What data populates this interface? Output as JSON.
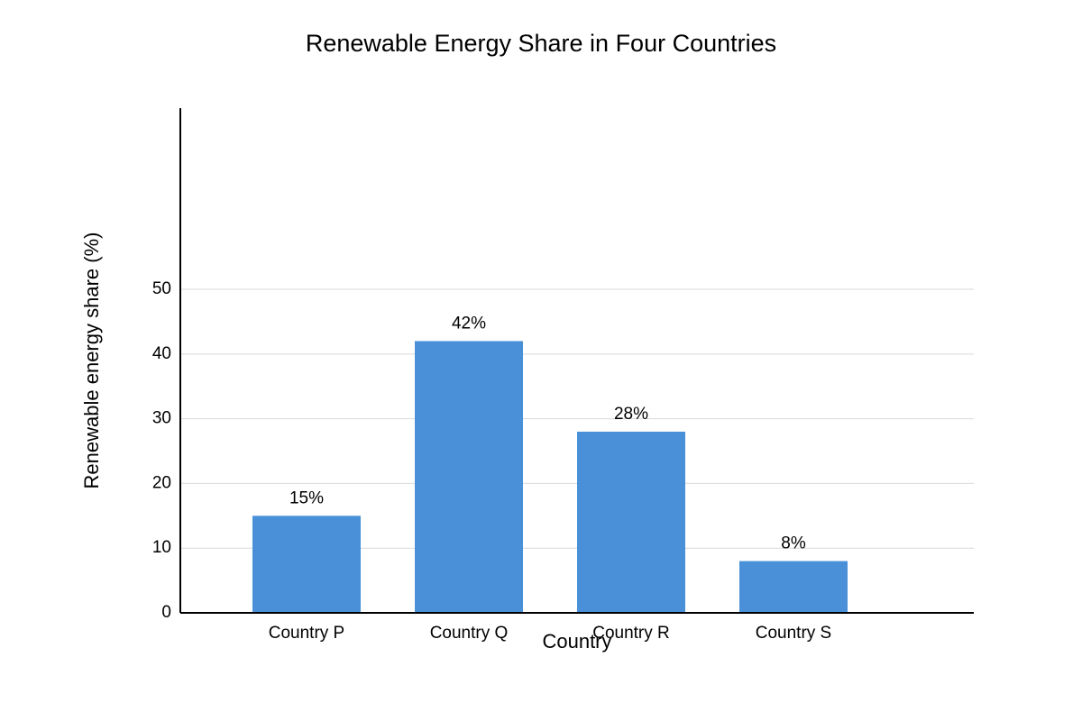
{
  "chart_data": {
    "type": "bar",
    "title": "Renewable Energy Share in Four Countries",
    "x_label": "Country",
    "y_label": "Renewable energy share (%)",
    "categories": [
      "Country P",
      "Country Q",
      "Country R",
      "Country S"
    ],
    "values": [
      15,
      42,
      28,
      8
    ],
    "value_labels": [
      "15%",
      "42%",
      "28%",
      "8%"
    ],
    "color": "#4a90d9",
    "ylim": [
      0,
      78
    ],
    "yticks": [
      0,
      10,
      20,
      30,
      40,
      50
    ],
    "grid": true
  }
}
